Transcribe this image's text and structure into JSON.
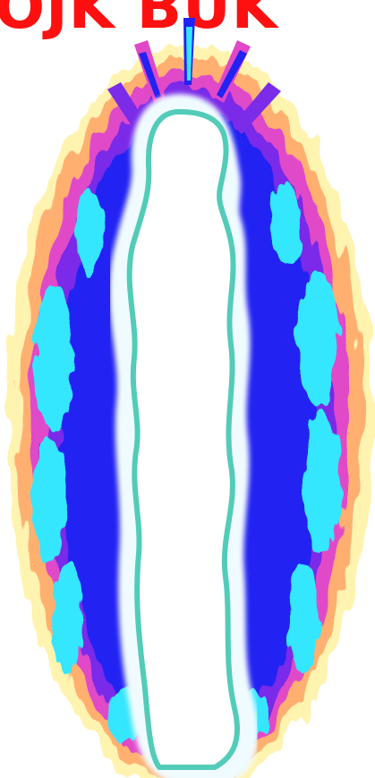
{
  "headline": {
    "text": "OJK BUK",
    "color": "#ff1010"
  },
  "image": {
    "subject": "kirlian-aura-silhouette-icon",
    "colors": {
      "outer_glow": "#fff0a0",
      "orange_band": "#ffa060",
      "magenta_band": "#e040c0",
      "purple_band": "#8030e0",
      "blue_band": "#2020f0",
      "cyan_core": "#30e8ff",
      "body_outline": "#50d0b8",
      "body_fill": "#ffffff"
    }
  }
}
